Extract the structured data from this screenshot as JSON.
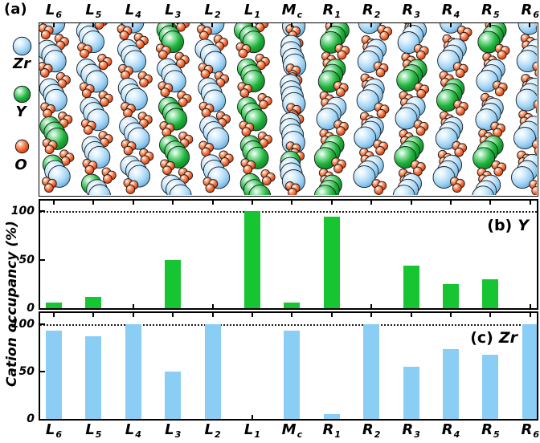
{
  "figure": {
    "panel_a_label": "(a)",
    "y_axis_title": "Cation occupancy (%)",
    "y_tick_values": [
      100,
      50,
      0
    ]
  },
  "legend": {
    "items": [
      {
        "label": "Zr",
        "color": "#9fd2f4"
      },
      {
        "label": "Y",
        "color": "#1eb13a"
      },
      {
        "label": "O",
        "color": "#ec5420"
      }
    ]
  },
  "columns": [
    {
      "main": "L",
      "sub": "6"
    },
    {
      "main": "L",
      "sub": "5"
    },
    {
      "main": "L",
      "sub": "4"
    },
    {
      "main": "L",
      "sub": "3"
    },
    {
      "main": "L",
      "sub": "2"
    },
    {
      "main": "L",
      "sub": "1"
    },
    {
      "main": "M",
      "sub": "c"
    },
    {
      "main": "R",
      "sub": "1"
    },
    {
      "main": "R",
      "sub": "2"
    },
    {
      "main": "R",
      "sub": "3"
    },
    {
      "main": "R",
      "sub": "4"
    },
    {
      "main": "R",
      "sub": "5"
    },
    {
      "main": "R",
      "sub": "6"
    }
  ],
  "chart_data": [
    {
      "type": "bar",
      "panel_label": "(b)",
      "species": "Y",
      "categories": [
        "L6",
        "L5",
        "L4",
        "L3",
        "L2",
        "L1",
        "Mc",
        "R1",
        "R2",
        "R3",
        "R4",
        "R5",
        "R6"
      ],
      "values": [
        6,
        12,
        0,
        50,
        0,
        100,
        6,
        94,
        0,
        44,
        25,
        30,
        0
      ],
      "ylabel": "Cation occupancy (%)",
      "ylim": [
        0,
        100
      ],
      "ref_line": 100,
      "bar_color": "#17c431",
      "grid": false,
      "legend_position": "none"
    },
    {
      "type": "bar",
      "panel_label": "(c)",
      "species": "Zr",
      "categories": [
        "L6",
        "L5",
        "L4",
        "L3",
        "L2",
        "L1",
        "Mc",
        "R1",
        "R2",
        "R3",
        "R4",
        "R5",
        "R6"
      ],
      "values": [
        93,
        87,
        100,
        50,
        100,
        0,
        93,
        5,
        100,
        55,
        74,
        68,
        100
      ],
      "ylabel": "Cation occupancy (%)",
      "ylim": [
        0,
        100
      ],
      "ref_line": 100,
      "bar_color": "#8acdf5",
      "grid": false,
      "legend_position": "none"
    }
  ],
  "structure": {
    "atoms": [
      {
        "species": "Zr",
        "color": "#9fd2f4"
      },
      {
        "species": "Y",
        "color": "#1eb13a"
      },
      {
        "species": "O",
        "color": "#ec5420"
      }
    ]
  }
}
